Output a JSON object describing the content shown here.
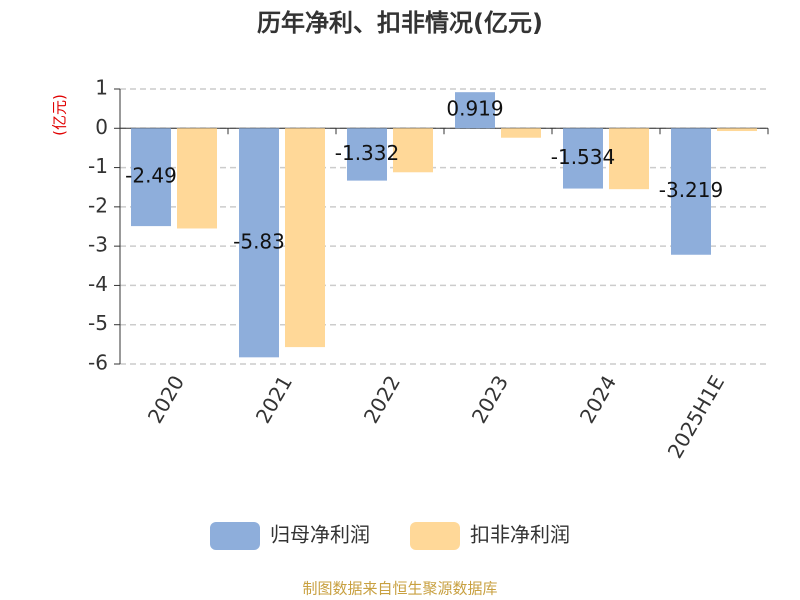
{
  "chart_data": {
    "type": "bar",
    "title": "历年净利、扣非情况(亿元)",
    "y_label": "(亿元)",
    "categories": [
      "2020",
      "2021",
      "2022",
      "2023",
      "2024",
      "2025H1E"
    ],
    "series": [
      {
        "name": "归母净利润",
        "color": "#8eaedb",
        "values": [
          -2.49,
          -5.83,
          -1.332,
          0.919,
          -1.534,
          -3.219
        ],
        "show_labels": true
      },
      {
        "name": "扣非净利润",
        "color": "#ffd898",
        "values": [
          -2.55,
          -5.57,
          -1.12,
          -0.24,
          -1.55,
          -0.07
        ],
        "show_labels": false
      }
    ],
    "ylim": [
      -6,
      1
    ],
    "yticks": [
      -6,
      -5,
      -4,
      -3,
      -2,
      -1,
      0,
      1
    ],
    "grid": true,
    "source": "制图数据来自恒生聚源数据库"
  }
}
